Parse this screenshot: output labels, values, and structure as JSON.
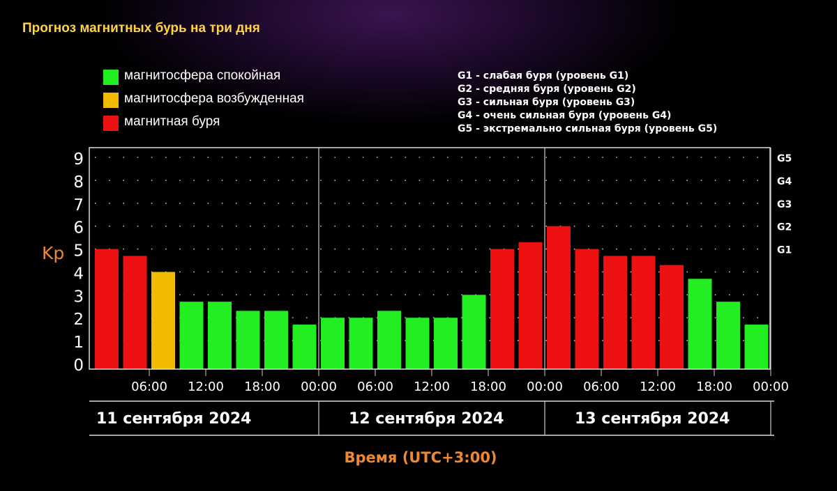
{
  "title": "Прогноз магнитных бурь на три дня",
  "legend": [
    {
      "label": "магнитосфера спокойная",
      "color": "#22ee22"
    },
    {
      "label": "магнитосфера возбужденная",
      "color": "#f0bb00"
    },
    {
      "label": "магнитная буря",
      "color": "#ee1111"
    }
  ],
  "storm_levels": [
    "G1 - слабая буря (уровень G1)",
    "G2 - средняя буря (уровень G2)",
    "G3 - сильная буря (уровень G3)",
    "G4 - очень сильная буря (уровень G4)",
    "G5 - экстремально сильная буря (уровень G5)"
  ],
  "chart_data": {
    "type": "bar",
    "ylabel": "Kp",
    "xlabel": "Время (UTC+3:00)",
    "ylim": [
      0,
      9
    ],
    "yticks": [
      "0",
      "1",
      "2",
      "3",
      "4",
      "5",
      "6",
      "7",
      "8",
      "9"
    ],
    "right_ticks": [
      {
        "label": "G1",
        "kp": 5
      },
      {
        "label": "G2",
        "kp": 6
      },
      {
        "label": "G3",
        "kp": 7
      },
      {
        "label": "G4",
        "kp": 8
      },
      {
        "label": "G5",
        "kp": 9
      }
    ],
    "grid": true,
    "time_ticks": [
      "06:00",
      "12:00",
      "18:00",
      "00:00",
      "06:00",
      "12:00",
      "18:00",
      "00:00",
      "06:00",
      "12:00",
      "18:00",
      "00:00"
    ],
    "days": [
      "11 сентября 2024",
      "12 сентября 2024",
      "13 сентября 2024"
    ],
    "intervals_per_day": 8,
    "series": [
      {
        "values": [
          5.0,
          4.7,
          4.0,
          2.7,
          2.7,
          2.3,
          2.3,
          1.7,
          2.0,
          2.0,
          2.3,
          2.0,
          2.0,
          3.0,
          5.0,
          5.3,
          6.0,
          5.0,
          4.7,
          4.7,
          4.3,
          3.7,
          2.7,
          1.7
        ],
        "status": [
          "storm",
          "storm",
          "active",
          "quiet",
          "quiet",
          "quiet",
          "quiet",
          "quiet",
          "quiet",
          "quiet",
          "quiet",
          "quiet",
          "quiet",
          "quiet",
          "storm",
          "storm",
          "storm",
          "storm",
          "storm",
          "storm",
          "storm",
          "quiet",
          "quiet",
          "quiet"
        ]
      }
    ],
    "colors": {
      "quiet": "#22ee22",
      "active": "#f0bb00",
      "storm": "#ee1111"
    },
    "axis_label_color": "#ee8833"
  }
}
